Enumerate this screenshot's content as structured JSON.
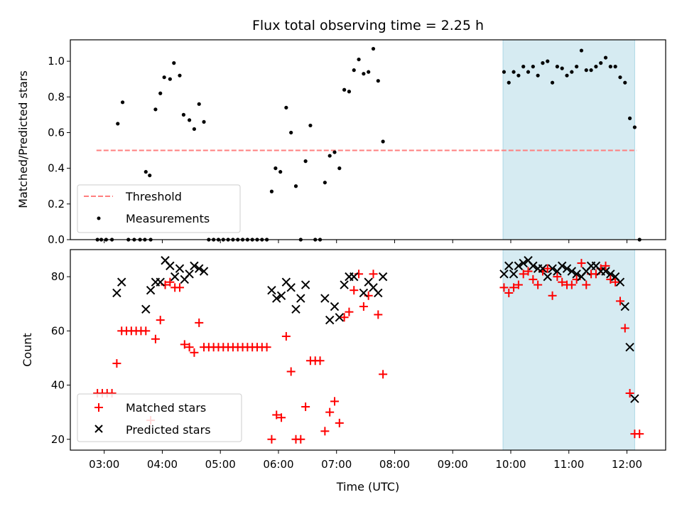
{
  "title": "Flux total observing time = 2.25 h",
  "colors": {
    "threshold": "#ff7f7f",
    "measurement": "#000000",
    "matched": "#ff0000",
    "predicted": "#000000",
    "highlight": "#add8e6"
  },
  "chart_data": [
    {
      "type": "scatter",
      "panel": "top",
      "xlabel": "",
      "ylabel": "Matched/Predicted stars",
      "xlim": [
        "02:25",
        "12:40"
      ],
      "ylim": [
        0,
        1.12
      ],
      "yticks": [
        "0.0",
        "0.2",
        "0.4",
        "0.6",
        "0.8",
        "1.0"
      ],
      "highlight_span": [
        "09:52",
        "12:08"
      ],
      "legend": {
        "position": "lower-left",
        "entries": [
          "Threshold",
          "Measurements"
        ]
      },
      "series": [
        {
          "name": "Threshold",
          "kind": "dashed-line",
          "x": [
            "02:52",
            "12:10"
          ],
          "y": [
            0.5,
            0.5
          ]
        },
        {
          "name": "Measurements",
          "kind": "dot",
          "points": [
            [
              "02:53",
              0
            ],
            [
              "02:57",
              0
            ],
            [
              "03:02",
              0
            ],
            [
              "03:08",
              0
            ],
            [
              "03:14",
              0.65
            ],
            [
              "03:19",
              0.77
            ],
            [
              "03:25",
              0
            ],
            [
              "03:31",
              0
            ],
            [
              "03:37",
              0
            ],
            [
              "03:42",
              0
            ],
            [
              "03:48",
              0
            ],
            [
              "03:43",
              0.38
            ],
            [
              "03:47",
              0.36
            ],
            [
              "03:53",
              0.73
            ],
            [
              "03:58",
              0.82
            ],
            [
              "04:02",
              0.91
            ],
            [
              "04:08",
              0.9
            ],
            [
              "04:12",
              0.99
            ],
            [
              "04:18",
              0.92
            ],
            [
              "04:22",
              0.7
            ],
            [
              "04:28",
              0.67
            ],
            [
              "04:33",
              0.62
            ],
            [
              "04:38",
              0.76
            ],
            [
              "04:43",
              0.66
            ],
            [
              "04:48",
              0
            ],
            [
              "04:53",
              0
            ],
            [
              "04:58",
              0
            ],
            [
              "05:03",
              0
            ],
            [
              "05:08",
              0
            ],
            [
              "05:13",
              0
            ],
            [
              "05:18",
              0
            ],
            [
              "05:23",
              0
            ],
            [
              "05:28",
              0
            ],
            [
              "05:33",
              0
            ],
            [
              "05:38",
              0
            ],
            [
              "05:43",
              0
            ],
            [
              "05:48",
              0
            ],
            [
              "05:53",
              0.27
            ],
            [
              "05:57",
              0.4
            ],
            [
              "06:02",
              0.38
            ],
            [
              "06:08",
              0.74
            ],
            [
              "06:13",
              0.6
            ],
            [
              "06:18",
              0.3
            ],
            [
              "06:23",
              0
            ],
            [
              "06:28",
              0.44
            ],
            [
              "06:33",
              0.64
            ],
            [
              "06:38",
              0
            ],
            [
              "06:43",
              0
            ],
            [
              "06:48",
              0.32
            ],
            [
              "06:53",
              0.47
            ],
            [
              "06:58",
              0.49
            ],
            [
              "07:03",
              0.4
            ],
            [
              "07:08",
              0.84
            ],
            [
              "07:13",
              0.83
            ],
            [
              "07:18",
              0.95
            ],
            [
              "07:23",
              1.01
            ],
            [
              "07:28",
              0.93
            ],
            [
              "07:33",
              0.94
            ],
            [
              "07:38",
              1.07
            ],
            [
              "07:43",
              0.89
            ],
            [
              "07:48",
              0.55
            ],
            [
              "09:53",
              0.94
            ],
            [
              "09:58",
              0.88
            ],
            [
              "10:03",
              0.94
            ],
            [
              "10:08",
              0.92
            ],
            [
              "10:13",
              0.97
            ],
            [
              "10:18",
              0.94
            ],
            [
              "10:23",
              0.97
            ],
            [
              "10:28",
              0.92
            ],
            [
              "10:33",
              0.99
            ],
            [
              "10:38",
              1.0
            ],
            [
              "10:43",
              0.88
            ],
            [
              "10:48",
              0.97
            ],
            [
              "10:53",
              0.96
            ],
            [
              "10:58",
              0.92
            ],
            [
              "11:03",
              0.94
            ],
            [
              "11:08",
              0.97
            ],
            [
              "11:13",
              1.06
            ],
            [
              "11:18",
              0.95
            ],
            [
              "11:23",
              0.95
            ],
            [
              "11:28",
              0.97
            ],
            [
              "11:33",
              0.99
            ],
            [
              "11:38",
              1.02
            ],
            [
              "11:43",
              0.97
            ],
            [
              "11:48",
              0.97
            ],
            [
              "11:53",
              0.91
            ],
            [
              "11:58",
              0.88
            ],
            [
              "12:03",
              0.68
            ],
            [
              "12:08",
              0.63
            ],
            [
              "12:13",
              0
            ]
          ]
        }
      ]
    },
    {
      "type": "scatter",
      "panel": "bottom",
      "xlabel": "Time (UTC)",
      "ylabel": "Count",
      "xlim": [
        "02:25",
        "12:40"
      ],
      "ylim": [
        16,
        90
      ],
      "yticks": [
        "20",
        "40",
        "60",
        "80"
      ],
      "xticks": [
        "03:00",
        "04:00",
        "05:00",
        "06:00",
        "07:00",
        "08:00",
        "09:00",
        "10:00",
        "11:00",
        "12:00"
      ],
      "highlight_span": [
        "09:52",
        "12:08"
      ],
      "legend": {
        "position": "lower-left",
        "entries": [
          "Matched stars",
          "Predicted stars"
        ]
      },
      "series": [
        {
          "name": "Matched stars",
          "kind": "plus",
          "points": [
            [
              "02:53",
              37
            ],
            [
              "02:58",
              37
            ],
            [
              "03:03",
              37
            ],
            [
              "03:08",
              37
            ],
            [
              "03:13",
              48
            ],
            [
              "03:18",
              60
            ],
            [
              "03:23",
              60
            ],
            [
              "03:28",
              60
            ],
            [
              "03:33",
              60
            ],
            [
              "03:38",
              60
            ],
            [
              "03:43",
              60
            ],
            [
              "03:48",
              27
            ],
            [
              "03:53",
              57
            ],
            [
              "03:58",
              64
            ],
            [
              "04:03",
              77
            ],
            [
              "04:08",
              78
            ],
            [
              "04:13",
              76
            ],
            [
              "04:18",
              76
            ],
            [
              "04:23",
              55
            ],
            [
              "04:28",
              54
            ],
            [
              "04:33",
              52
            ],
            [
              "04:38",
              63
            ],
            [
              "04:43",
              54
            ],
            [
              "04:48",
              54
            ],
            [
              "04:53",
              54
            ],
            [
              "04:58",
              54
            ],
            [
              "05:03",
              54
            ],
            [
              "05:08",
              54
            ],
            [
              "05:13",
              54
            ],
            [
              "05:18",
              54
            ],
            [
              "05:23",
              54
            ],
            [
              "05:28",
              54
            ],
            [
              "05:33",
              54
            ],
            [
              "05:38",
              54
            ],
            [
              "05:43",
              54
            ],
            [
              "05:48",
              54
            ],
            [
              "05:53",
              20
            ],
            [
              "05:58",
              29
            ],
            [
              "06:03",
              28
            ],
            [
              "06:08",
              58
            ],
            [
              "06:13",
              45
            ],
            [
              "06:18",
              20
            ],
            [
              "06:23",
              20
            ],
            [
              "06:28",
              32
            ],
            [
              "06:33",
              49
            ],
            [
              "06:38",
              49
            ],
            [
              "06:43",
              49
            ],
            [
              "06:48",
              23
            ],
            [
              "06:53",
              30
            ],
            [
              "06:58",
              34
            ],
            [
              "07:03",
              26
            ],
            [
              "07:08",
              65
            ],
            [
              "07:13",
              67
            ],
            [
              "07:18",
              75
            ],
            [
              "07:23",
              81
            ],
            [
              "07:28",
              69
            ],
            [
              "07:33",
              73
            ],
            [
              "07:38",
              81
            ],
            [
              "07:43",
              66
            ],
            [
              "07:48",
              44
            ],
            [
              "09:53",
              76
            ],
            [
              "09:58",
              74
            ],
            [
              "10:03",
              76
            ],
            [
              "10:08",
              77
            ],
            [
              "10:13",
              81
            ],
            [
              "10:18",
              82
            ],
            [
              "10:23",
              79
            ],
            [
              "10:28",
              77
            ],
            [
              "10:33",
              82
            ],
            [
              "10:38",
              83
            ],
            [
              "10:43",
              73
            ],
            [
              "10:48",
              80
            ],
            [
              "10:53",
              78
            ],
            [
              "10:58",
              77
            ],
            [
              "11:03",
              77
            ],
            [
              "11:08",
              79
            ],
            [
              "11:13",
              85
            ],
            [
              "11:18",
              77
            ],
            [
              "11:23",
              81
            ],
            [
              "11:28",
              81
            ],
            [
              "11:33",
              83
            ],
            [
              "11:38",
              84
            ],
            [
              "11:43",
              79
            ],
            [
              "11:48",
              78
            ],
            [
              "11:53",
              71
            ],
            [
              "11:58",
              61
            ],
            [
              "12:03",
              37
            ],
            [
              "12:08",
              22
            ],
            [
              "12:13",
              22
            ]
          ]
        },
        {
          "name": "Predicted stars",
          "kind": "cross",
          "points": [
            [
              "03:13",
              74
            ],
            [
              "03:18",
              78
            ],
            [
              "03:43",
              68
            ],
            [
              "03:48",
              75
            ],
            [
              "03:53",
              78
            ],
            [
              "03:58",
              78
            ],
            [
              "04:03",
              86
            ],
            [
              "04:08",
              84
            ],
            [
              "04:13",
              80
            ],
            [
              "04:18",
              83
            ],
            [
              "04:23",
              79
            ],
            [
              "04:28",
              81
            ],
            [
              "04:33",
              84
            ],
            [
              "04:38",
              83
            ],
            [
              "04:43",
              82
            ],
            [
              "05:53",
              75
            ],
            [
              "05:58",
              72
            ],
            [
              "06:03",
              73
            ],
            [
              "06:08",
              78
            ],
            [
              "06:13",
              76
            ],
            [
              "06:18",
              68
            ],
            [
              "06:23",
              72
            ],
            [
              "06:28",
              77
            ],
            [
              "06:48",
              72
            ],
            [
              "06:53",
              64
            ],
            [
              "06:58",
              69
            ],
            [
              "07:03",
              65
            ],
            [
              "07:08",
              77
            ],
            [
              "07:13",
              80
            ],
            [
              "07:18",
              80
            ],
            [
              "07:28",
              74
            ],
            [
              "07:33",
              78
            ],
            [
              "07:38",
              76
            ],
            [
              "07:43",
              74
            ],
            [
              "07:48",
              80
            ],
            [
              "09:53",
              81
            ],
            [
              "09:58",
              84
            ],
            [
              "10:03",
              81
            ],
            [
              "10:08",
              84
            ],
            [
              "10:13",
              85
            ],
            [
              "10:18",
              86
            ],
            [
              "10:23",
              84
            ],
            [
              "10:28",
              83
            ],
            [
              "10:33",
              83
            ],
            [
              "10:38",
              80
            ],
            [
              "10:43",
              83
            ],
            [
              "10:48",
              82
            ],
            [
              "10:53",
              84
            ],
            [
              "10:58",
              83
            ],
            [
              "11:03",
              82
            ],
            [
              "11:08",
              81
            ],
            [
              "11:13",
              80
            ],
            [
              "11:18",
              82
            ],
            [
              "11:23",
              84
            ],
            [
              "11:28",
              84
            ],
            [
              "11:33",
              82
            ],
            [
              "11:38",
              82
            ],
            [
              "11:43",
              81
            ],
            [
              "11:48",
              80
            ],
            [
              "11:53",
              78
            ],
            [
              "11:58",
              69
            ],
            [
              "12:03",
              54
            ],
            [
              "12:08",
              35
            ]
          ]
        }
      ]
    }
  ]
}
